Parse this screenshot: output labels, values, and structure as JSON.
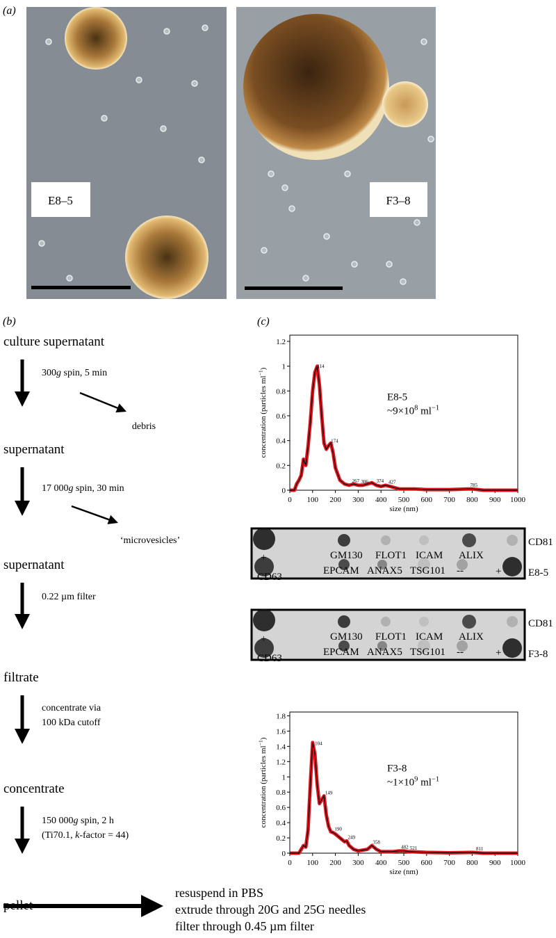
{
  "panel_a": {
    "label": "(a)",
    "images": [
      {
        "label": "E8–5"
      },
      {
        "label": "F3–8"
      }
    ]
  },
  "panel_b": {
    "label": "(b)",
    "steps": [
      "culture supernatant",
      "supernatant",
      "supernatant",
      "filtrate",
      "concentrate",
      "pellet"
    ],
    "actions": [
      [
        [
          {
            "text": "300"
          },
          {
            "text": "g",
            "italic": true
          },
          {
            "text": " spin, 5 min"
          }
        ]
      ],
      [
        [
          {
            "text": "17 000"
          },
          {
            "text": "g",
            "italic": true
          },
          {
            "text": " spin, 30 min"
          }
        ]
      ],
      [
        [
          {
            "text": "0.22 µm filter"
          }
        ]
      ],
      [
        [
          {
            "text": "concentrate via"
          }
        ],
        [
          {
            "text": "100 kDa cutoff"
          }
        ]
      ],
      [
        [
          {
            "text": "150 000"
          },
          {
            "text": "g",
            "italic": true
          },
          {
            "text": " spin, 2 h"
          }
        ],
        [
          {
            "text": "(Ti70.1, "
          },
          {
            "text": "k",
            "italic": true
          },
          {
            "text": "-factor = 44)"
          }
        ]
      ]
    ],
    "byproducts": [
      "debris",
      "‘microvesicles’"
    ],
    "final": [
      "resuspend in PBS",
      "extrude through 20G and 25G needles",
      "filter through 0.45 µm filter"
    ]
  },
  "panel_c": {
    "label": "(c)",
    "blots": [
      {
        "top_labels": [
          "GM130",
          "FLOT1",
          "ICAM",
          "ALIX"
        ],
        "bottom_labels": [
          "EPCAM",
          "ANAX5",
          "TSG101",
          "--"
        ],
        "plus": "+",
        "right_top": "CD81",
        "right_bottom": "E8-5",
        "left": "CD63"
      },
      {
        "top_labels": [
          "GM130",
          "FLOT1",
          "ICAM",
          "ALIX"
        ],
        "bottom_labels": [
          "EPCAM",
          "ANAX5",
          "TSG101",
          "--"
        ],
        "plus": "+",
        "right_top": "CD81",
        "right_bottom": "F3-8",
        "left": "CD63"
      }
    ]
  },
  "chart_data": [
    {
      "type": "line",
      "xlabel": "size (nm)",
      "ylabel": [
        {
          "text": "concentration (particles ml"
        },
        {
          "text": "−1",
          "sup": true
        },
        {
          "text": ")"
        }
      ],
      "sample": "E8-5",
      "concentration": [
        {
          "text": "~9×10"
        },
        {
          "text": "8",
          "sup": true
        },
        {
          "text": " ml"
        },
        {
          "text": "−1",
          "sup": true
        }
      ],
      "x": [
        0,
        20,
        30,
        40,
        50,
        60,
        70,
        80,
        90,
        100,
        110,
        120,
        130,
        140,
        150,
        160,
        170,
        180,
        190,
        200,
        220,
        240,
        260,
        280,
        300,
        320,
        340,
        360,
        380,
        400,
        420,
        440,
        460,
        480,
        500,
        550,
        600,
        700,
        780,
        800,
        850,
        900,
        1000
      ],
      "series": [
        {
          "color": "#000000",
          "band_color": "#e8141e",
          "values": [
            0,
            0,
            0.05,
            0.08,
            0.12,
            0.25,
            0.2,
            0.35,
            0.55,
            0.8,
            0.95,
            1.0,
            0.85,
            0.6,
            0.38,
            0.33,
            0.36,
            0.38,
            0.3,
            0.18,
            0.08,
            0.05,
            0.04,
            0.05,
            0.04,
            0.04,
            0.05,
            0.06,
            0.04,
            0.03,
            0.04,
            0.03,
            0.02,
            0.01,
            0.01,
            0.01,
            0.005,
            0.005,
            0.01,
            0.01,
            0,
            0,
            0
          ]
        }
      ],
      "peak_labels": [
        114,
        174,
        267,
        306,
        374,
        427,
        785
      ],
      "peak_label_color": "#3040ff",
      "xlim": [
        0,
        1000
      ],
      "xticks": [
        0,
        100,
        200,
        300,
        400,
        500,
        600,
        700,
        800,
        900,
        1000
      ],
      "ylim": [
        0,
        1.25
      ],
      "yticks": [
        0,
        0.2,
        0.4,
        0.6,
        0.8,
        1.0,
        1.2
      ]
    },
    {
      "type": "line",
      "xlabel": "size (nm)",
      "ylabel": [
        {
          "text": "concentration (particles ml"
        },
        {
          "text": "−1",
          "sup": true
        },
        {
          "text": ")"
        }
      ],
      "sample": "F3-8",
      "concentration": [
        {
          "text": "~1×10"
        },
        {
          "text": "9",
          "sup": true
        },
        {
          "text": " ml"
        },
        {
          "text": "−1",
          "sup": true
        }
      ],
      "x": [
        0,
        40,
        50,
        60,
        70,
        80,
        90,
        100,
        110,
        120,
        130,
        140,
        150,
        160,
        170,
        180,
        190,
        200,
        220,
        240,
        250,
        260,
        280,
        300,
        340,
        360,
        380,
        400,
        450,
        480,
        500,
        520,
        600,
        700,
        800,
        850,
        900,
        1000
      ],
      "series": [
        {
          "color": "#000000",
          "band_color": "#e8141e",
          "values": [
            0,
            0,
            0.05,
            0.1,
            0.08,
            0.3,
            0.9,
            1.45,
            1.3,
            0.9,
            0.65,
            0.7,
            0.75,
            0.5,
            0.35,
            0.28,
            0.27,
            0.25,
            0.2,
            0.15,
            0.16,
            0.1,
            0.05,
            0.03,
            0.05,
            0.1,
            0.05,
            0.02,
            0.02,
            0.03,
            0.03,
            0.02,
            0.01,
            0.005,
            0.01,
            0,
            0,
            0
          ]
        }
      ],
      "peak_labels": [
        104,
        149,
        190,
        249,
        358,
        482,
        521,
        811
      ],
      "peak_label_color": "#3040ff",
      "xlim": [
        0,
        1000
      ],
      "xticks": [
        0,
        100,
        200,
        300,
        400,
        500,
        600,
        700,
        800,
        900,
        1000
      ],
      "ylim": [
        0,
        1.85
      ],
      "yticks": [
        0,
        0.2,
        0.4,
        0.6,
        0.8,
        1.0,
        1.2,
        1.4,
        1.6,
        1.8
      ]
    }
  ]
}
